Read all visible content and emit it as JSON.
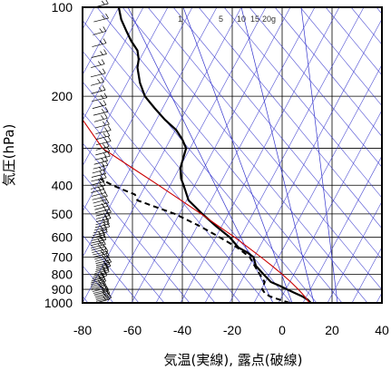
{
  "chart_data": {
    "type": "line",
    "title": "",
    "xlabel": "気温(実線), 露点(破線)",
    "ylabel": "気圧(hPa)",
    "x_range": [
      -80,
      40
    ],
    "y_range": [
      1000,
      100
    ],
    "y_scale": "log",
    "x_ticks": [
      -80,
      -60,
      -40,
      -20,
      0,
      20,
      40
    ],
    "x_tick_labels": [
      "-80",
      "-60",
      "-40",
      "-20",
      "0",
      "20",
      "40"
    ],
    "y_ticks": [
      100,
      200,
      300,
      400,
      500,
      600,
      700,
      800,
      900,
      1000
    ],
    "y_tick_labels": [
      "100",
      "200",
      "300",
      "400",
      "500",
      "600",
      "700",
      "800",
      "900",
      "1000"
    ],
    "grid": true,
    "mixing_ratio_labels": [
      "1",
      "5",
      "10",
      "15",
      "20",
      "g"
    ],
    "colors": {
      "temperature": "#000000",
      "dewpoint": "#000000",
      "parcel": "#cc0000",
      "adiabats": "#3333cc",
      "grid": "#000000"
    },
    "series": [
      {
        "name": "",
        "style": "solid",
        "points": [
          [
            11.5,
            1000
          ],
          [
            10.2,
            975
          ],
          [
            8.0,
            950
          ],
          [
            5.0,
            925
          ],
          [
            2.0,
            900
          ],
          [
            -1.0,
            875
          ],
          [
            -4.5,
            850
          ],
          [
            -7.5,
            800
          ],
          [
            -10.5,
            750
          ],
          [
            -11.5,
            700
          ],
          [
            -14.0,
            675
          ],
          [
            -17.5,
            650
          ],
          [
            -21.0,
            600
          ],
          [
            -26.5,
            550
          ],
          [
            -32.0,
            500
          ],
          [
            -37.5,
            450
          ],
          [
            -39.5,
            400
          ],
          [
            -40.5,
            380
          ],
          [
            -40.8,
            350
          ],
          [
            -38.5,
            300
          ],
          [
            -40.0,
            280
          ],
          [
            -42.5,
            260
          ],
          [
            -47.0,
            240
          ],
          [
            -51.0,
            220
          ],
          [
            -55.0,
            200
          ],
          [
            -57.0,
            180
          ],
          [
            -58.0,
            160
          ],
          [
            -57.5,
            150
          ],
          [
            -58.0,
            140
          ],
          [
            -60.5,
            130
          ],
          [
            -62.5,
            120
          ],
          [
            -64.5,
            110
          ],
          [
            -65.5,
            100
          ]
        ]
      },
      {
        "name": "",
        "style": "dashed",
        "points": [
          [
            3.0,
            1000
          ],
          [
            -1.0,
            975
          ],
          [
            -5.0,
            950
          ],
          [
            -7.0,
            925
          ],
          [
            -8.0,
            900
          ],
          [
            -7.5,
            875
          ],
          [
            -7.0,
            850
          ],
          [
            -9.0,
            800
          ],
          [
            -11.0,
            750
          ],
          [
            -13.0,
            700
          ],
          [
            -18.0,
            650
          ],
          [
            -25.0,
            600
          ],
          [
            -33.0,
            550
          ],
          [
            -43.0,
            500
          ],
          [
            -58.0,
            450
          ],
          [
            -59.0,
            430
          ],
          [
            -62.0,
            420
          ],
          [
            -65.0,
            410
          ],
          [
            -68.0,
            400
          ],
          [
            -73.0,
            380
          ]
        ]
      },
      {
        "name": "",
        "style": "parcel",
        "points": [
          [
            11.0,
            1000
          ],
          [
            9.0,
            950
          ],
          [
            6.5,
            900
          ],
          [
            3.5,
            850
          ],
          [
            0.0,
            800
          ],
          [
            -4.0,
            750
          ],
          [
            -8.5,
            700
          ],
          [
            -13.5,
            650
          ],
          [
            -19.0,
            600
          ],
          [
            -25.5,
            550
          ],
          [
            -32.5,
            500
          ],
          [
            -40.5,
            450
          ],
          [
            -49.5,
            400
          ],
          [
            -60.0,
            350
          ],
          [
            -72.0,
            300
          ],
          [
            -80.0,
            240
          ]
        ]
      }
    ],
    "wind_barbs_column": true
  }
}
